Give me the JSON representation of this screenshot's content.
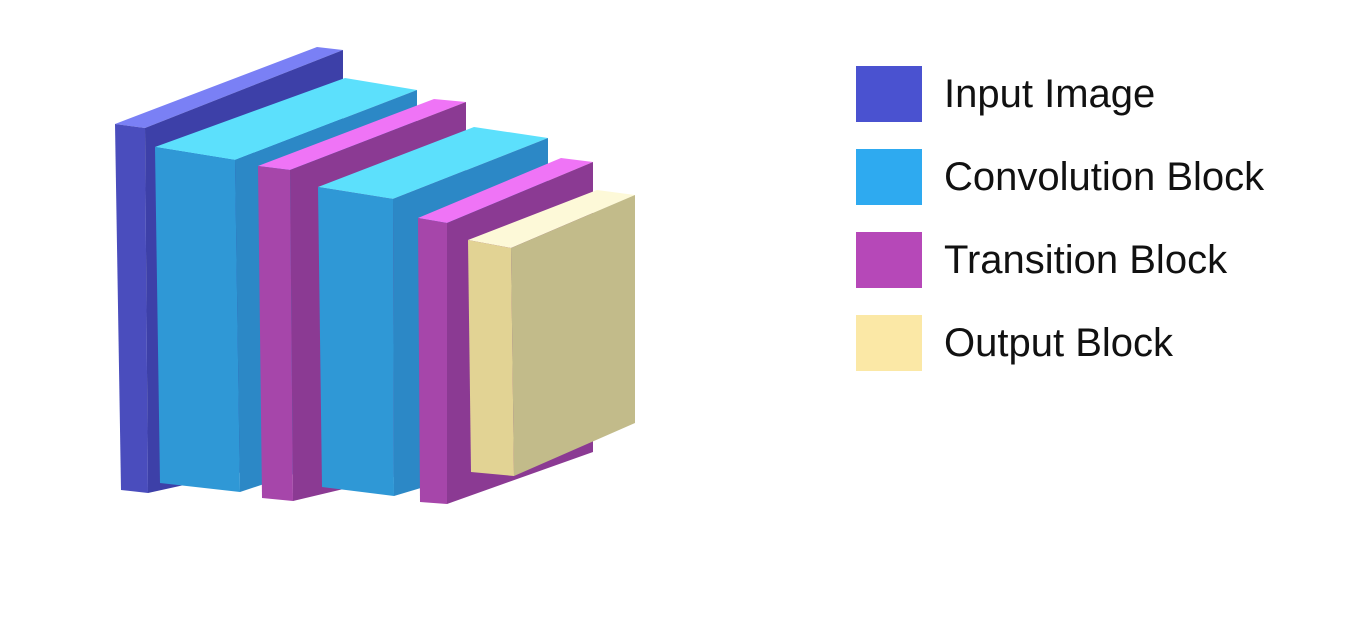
{
  "legend": {
    "items": [
      {
        "label": "Input Image",
        "color": "#4a52d0"
      },
      {
        "label": "Convolution Block",
        "color": "#2eaaf0"
      },
      {
        "label": "Transition Block",
        "color": "#b648b8"
      },
      {
        "label": "Output Block",
        "color": "#fbe8a6"
      }
    ]
  },
  "blocks": [
    {
      "kind": "Input Image",
      "colors": {
        "front": "#4a4dbd",
        "side": "#3d40a8",
        "top": "#7a80f5"
      }
    },
    {
      "kind": "Convolution Block",
      "colors": {
        "front": "#2f98d6",
        "side": "#2c88c6",
        "top": "#5ce0fc"
      }
    },
    {
      "kind": "Transition Block",
      "colors": {
        "front": "#a646aa",
        "side": "#8b3a93",
        "top": "#ef74f6"
      }
    },
    {
      "kind": "Convolution Block",
      "colors": {
        "front": "#2f98d6",
        "side": "#2c88c6",
        "top": "#5ce0fc"
      }
    },
    {
      "kind": "Transition Block",
      "colors": {
        "front": "#a646aa",
        "side": "#8b3a93",
        "top": "#ef74f6"
      }
    },
    {
      "kind": "Output Block",
      "colors": {
        "front": "#e2d394",
        "side": "#c2bb8a",
        "top": "#fdf9d8"
      }
    }
  ]
}
